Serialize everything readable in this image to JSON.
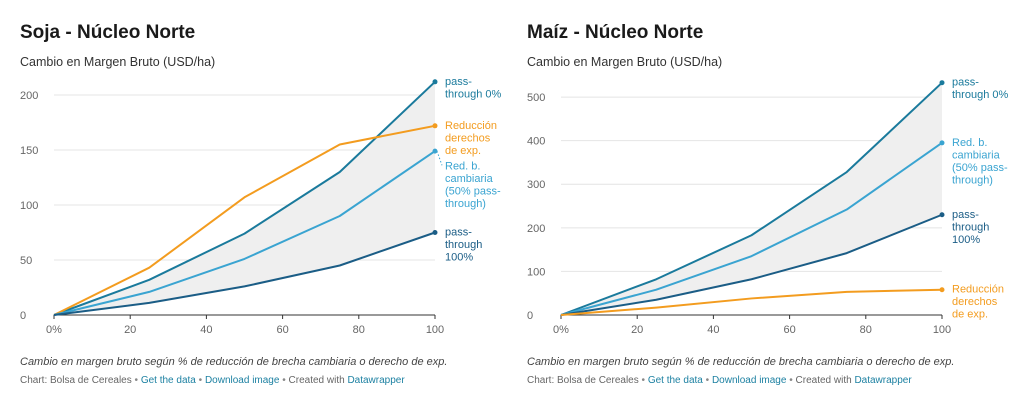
{
  "chart_data": [
    {
      "type": "line",
      "title": "Soja - Núcleo Norte",
      "subtitle": "Cambio en Margen Bruto (USD/ha)",
      "x": [
        0,
        25,
        50,
        75,
        100
      ],
      "xticks": [
        "0%",
        "20",
        "40",
        "60",
        "80",
        "100"
      ],
      "xtick_values": [
        0,
        20,
        40,
        60,
        80,
        100
      ],
      "xlim": [
        0,
        100
      ],
      "ylim": [
        0,
        210
      ],
      "yticks": [
        0,
        50,
        100,
        150,
        200
      ],
      "band": {
        "upper": "pass-through 0%",
        "lower": "pass-through 100%"
      },
      "series": [
        {
          "name": "pass-through 0%",
          "label": [
            "pass-",
            "through 0%"
          ],
          "color": "#1a7a9c",
          "values": [
            0,
            32,
            74,
            130,
            212
          ]
        },
        {
          "name": "Reducción derechos de exp.",
          "label": [
            "Reducción",
            "derechos",
            "de exp."
          ],
          "color": "#f39c1f",
          "values": [
            0,
            43,
            107,
            155,
            172
          ]
        },
        {
          "name": "Red. b. cambiaria (50% pass-through)",
          "label": [
            "Red. b.",
            "cambiaria",
            "(50% pass-",
            "through)"
          ],
          "color": "#3aa4d1",
          "values": [
            0,
            21,
            51,
            90,
            149
          ]
        },
        {
          "name": "pass-through 100%",
          "label": [
            "pass-",
            "through",
            "100%"
          ],
          "color": "#1b5d86",
          "values": [
            0,
            11,
            26,
            45,
            75
          ]
        }
      ]
    },
    {
      "type": "line",
      "title": "Maíz - Núcleo Norte",
      "subtitle": "Cambio en Margen Bruto (USD/ha)",
      "x": [
        0,
        25,
        50,
        75,
        100
      ],
      "xticks": [
        "0%",
        "20",
        "40",
        "60",
        "80",
        "100"
      ],
      "xtick_values": [
        0,
        20,
        40,
        60,
        80,
        100
      ],
      "xlim": [
        0,
        100
      ],
      "ylim": [
        0,
        530
      ],
      "yticks": [
        0,
        100,
        200,
        300,
        400,
        500
      ],
      "band": {
        "upper": "pass-through 0%",
        "lower": "pass-through 100%"
      },
      "series": [
        {
          "name": "pass-through 0%",
          "label": [
            "pass-",
            "through 0%"
          ],
          "color": "#1a7a9c",
          "values": [
            0,
            82,
            183,
            328,
            533
          ]
        },
        {
          "name": "Red. b. cambiaria (50% pass-through)",
          "label": [
            "Red. b.",
            "cambiaria",
            "(50% pass-",
            "through)"
          ],
          "color": "#3aa4d1",
          "values": [
            0,
            58,
            135,
            242,
            395
          ]
        },
        {
          "name": "pass-through 100%",
          "label": [
            "pass-",
            "through",
            "100%"
          ],
          "color": "#1b5d86",
          "values": [
            0,
            35,
            82,
            142,
            230
          ]
        },
        {
          "name": "Reducción derechos de exp.",
          "label": [
            "Reducción",
            "derechos",
            "de exp."
          ],
          "color": "#f39c1f",
          "values": [
            0,
            17,
            38,
            53,
            58
          ]
        }
      ]
    }
  ],
  "panels": [
    {
      "title": "Soja - Núcleo Norte",
      "subtitle": "Cambio en Margen Bruto (USD/ha)",
      "note": "Cambio en margen bruto según % de reducción de brecha cambiaria o derecho de exp.",
      "footer": {
        "prefix": "Chart: Bolsa de Cereales",
        "sep": "•",
        "get_data": "Get the data",
        "download": "Download image",
        "created": "Created with",
        "tool": "Datawrapper"
      }
    },
    {
      "title": "Maíz - Núcleo Norte",
      "subtitle": "Cambio en Margen Bruto (USD/ha)",
      "note": "Cambio en margen bruto según % de reducción de brecha cambiaria o derecho de exp.",
      "footer": {
        "prefix": "Chart: Bolsa de Cereales",
        "sep": "•",
        "get_data": "Get the data",
        "download": "Download image",
        "created": "Created with",
        "tool": "Datawrapper"
      }
    }
  ]
}
